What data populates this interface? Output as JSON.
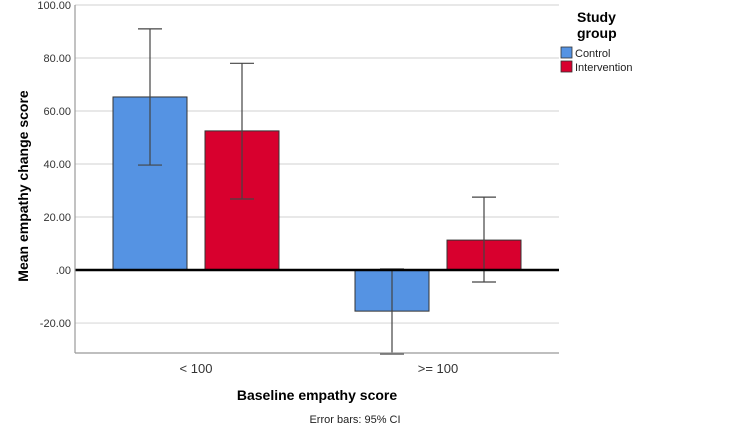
{
  "chart_data": {
    "type": "bar",
    "title": "",
    "xlabel": "Baseline empathy  score",
    "ylabel": "Mean empathy change score",
    "categories": [
      "< 100",
      ">= 100"
    ],
    "ylim": [
      -31.3,
      100
    ],
    "yticks": [
      100,
      80,
      60,
      40,
      20,
      0,
      -20
    ],
    "ytick_labels": [
      "100.00",
      "80.00",
      "60.00",
      "40.00",
      "20.00",
      ".00",
      "-20.00"
    ],
    "grid": true,
    "legend": {
      "title_lines": [
        "Study",
        "group"
      ],
      "placement": "top-right"
    },
    "series": [
      {
        "name": "Control",
        "color": "#5593e3",
        "values": [
          65.3,
          -15.5
        ],
        "ci_lower": [
          39.6,
          -31.7
        ],
        "ci_upper": [
          91.0,
          0.4
        ]
      },
      {
        "name": "Intervention",
        "color": "#d8002e",
        "values": [
          52.5,
          11.3
        ],
        "ci_lower": [
          26.8,
          -4.5
        ],
        "ci_upper": [
          78.0,
          27.5
        ]
      }
    ],
    "footnote": "Error bars: 95% CI"
  }
}
